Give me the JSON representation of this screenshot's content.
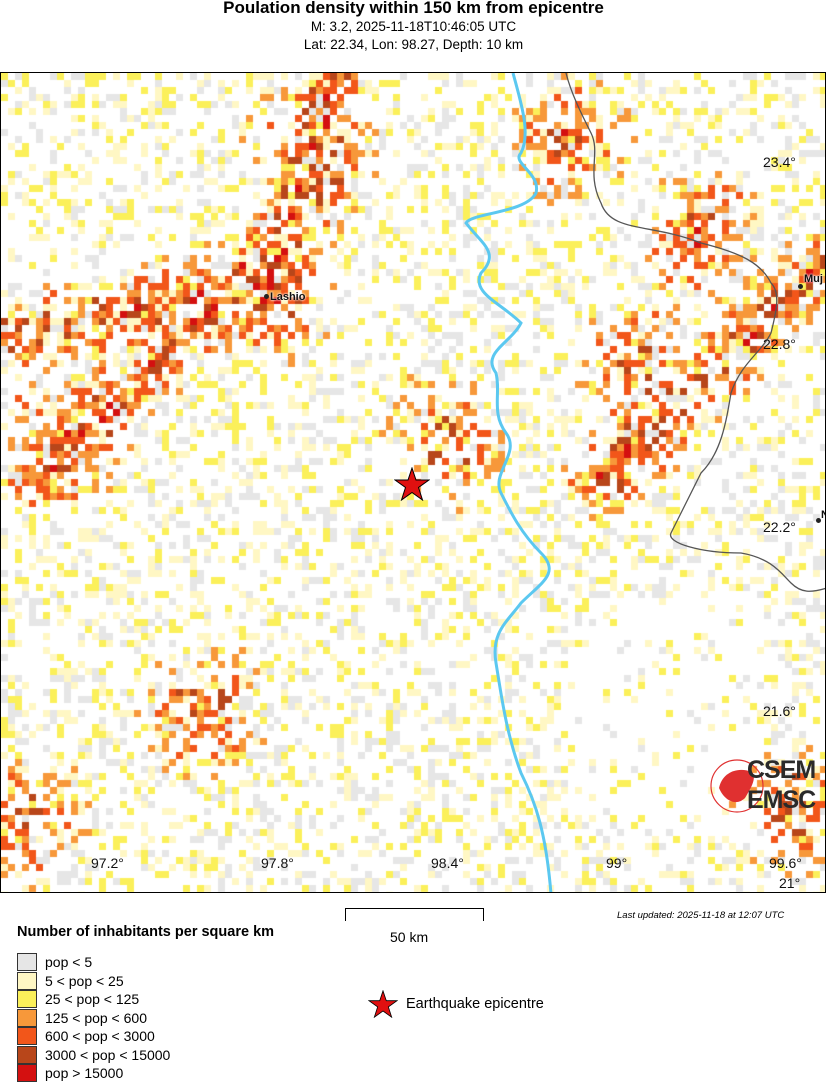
{
  "header": {
    "title": "Poulation density within 150 km from epicentre",
    "line2": "M: 3.2,  2025-11-18T10:46:05 UTC",
    "line3": "Lat: 22.34, Lon: 98.27, Depth: 10 km"
  },
  "map": {
    "lon_labels": [
      "97.2°",
      "97.8°",
      "98.4°",
      "99°",
      "99.6°"
    ],
    "lat_labels": [
      "23.4°",
      "22.8°",
      "22.2°",
      "21.6°",
      "21°"
    ],
    "cities": [
      "Lashio",
      "Muj",
      "N"
    ],
    "epicentre": {
      "lat": 22.34,
      "lon": 98.27,
      "color": "#e01010"
    },
    "river_color": "#5bc8f0",
    "border_color": "#555555",
    "logo": {
      "top": "CSEM",
      "bottom": "EMSC",
      "color": "#e03030"
    }
  },
  "scale_bar": {
    "label": "50 km"
  },
  "last_updated": "Last updated: 2025-11-18 at 12:07 UTC",
  "legend": {
    "title": "Number of inhabitants per square km",
    "items": [
      {
        "label": "pop < 5",
        "color": "#e6e6e6"
      },
      {
        "label": "5 < pop < 25",
        "color": "#fff7c4"
      },
      {
        "label": "25 < pop < 125",
        "color": "#fbf05a"
      },
      {
        "label": "125 < pop < 600",
        "color": "#f7983a"
      },
      {
        "label": "600 < pop < 3000",
        "color": "#f2561a"
      },
      {
        "label": "3000 < pop < 15000",
        "color": "#b8461a"
      },
      {
        "label": "pop > 15000",
        "color": "#d41010"
      }
    ],
    "epicentre_label": "Earthquake epicentre"
  }
}
